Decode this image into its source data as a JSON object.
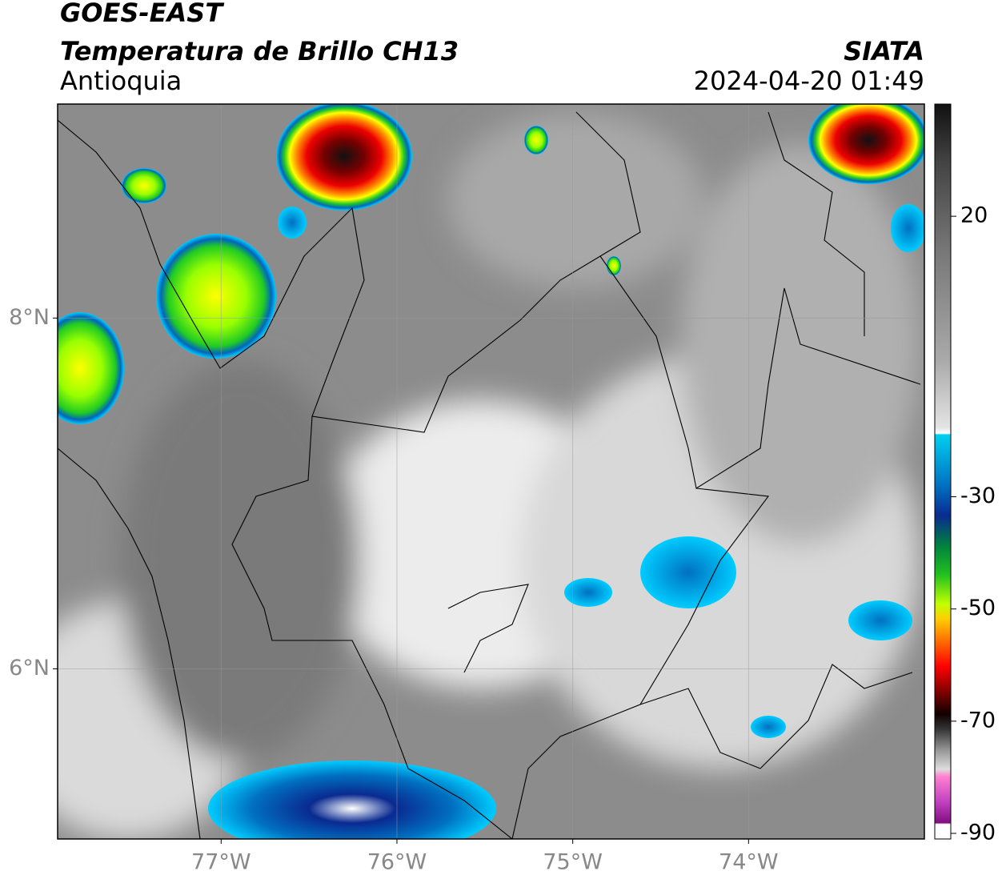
{
  "chart_data": {
    "type": "map",
    "title": "GOES-EAST",
    "subtitle": "Temperatura de Brillo CH13",
    "region": "Antioquia",
    "source": "SIATA",
    "timestamp": "2024-04-20 01:49",
    "xlim": [
      -77.93,
      -73
    ],
    "ylim": [
      5.03,
      9.22
    ],
    "xticks": [
      {
        "value": -77,
        "label": "77°W"
      },
      {
        "value": -76,
        "label": "76°W"
      },
      {
        "value": -75,
        "label": "75°W"
      },
      {
        "value": -74,
        "label": "74°W"
      }
    ],
    "yticks": [
      {
        "value": 6,
        "label": "6°N"
      },
      {
        "value": 8,
        "label": "8°N"
      }
    ],
    "colorbar_lim": [
      -91,
      40
    ],
    "colorbar_ticks": [
      20,
      -30,
      -50,
      -70,
      -90
    ],
    "grid": true
  }
}
